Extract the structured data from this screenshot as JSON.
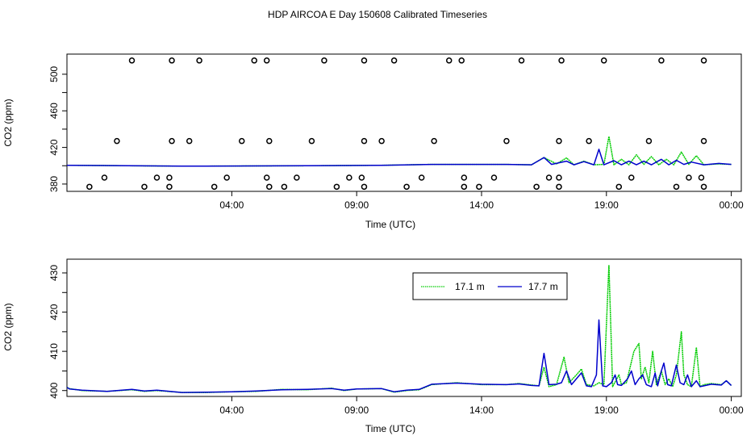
{
  "title": "HDP AIRCOA E  Day 150608  Calibrated Timeseries",
  "colors": {
    "green": "#00cc00",
    "blue": "#0000cc",
    "axis": "#000000"
  },
  "chart_data": [
    {
      "type": "scatter+line",
      "title": "",
      "xlabel": "Time (UTC)",
      "ylabel": "CO2 (ppm)",
      "xlim": [
        -2.6,
        24.4
      ],
      "ylim": [
        372,
        522
      ],
      "xticks": [
        4,
        9,
        14,
        19,
        24
      ],
      "xtick_labels": [
        "04:00",
        "09:00",
        "14:00",
        "19:00",
        "00:00"
      ],
      "yticks": [
        380,
        420,
        460,
        500
      ],
      "yticks_minor": [
        400,
        440,
        480
      ],
      "grid": false,
      "calibration_points": [
        {
          "t": -1.7,
          "v": 377
        },
        {
          "t": -1.1,
          "v": 387
        },
        {
          "t": -0.6,
          "v": 427
        },
        {
          "t": 0.0,
          "v": 515
        },
        {
          "t": 0.5,
          "v": 377
        },
        {
          "t": 1.0,
          "v": 387
        },
        {
          "t": 1.5,
          "v": 377
        },
        {
          "t": 1.5,
          "v": 387
        },
        {
          "t": 1.6,
          "v": 427
        },
        {
          "t": 1.6,
          "v": 515
        },
        {
          "t": 2.3,
          "v": 427
        },
        {
          "t": 2.7,
          "v": 515
        },
        {
          "t": 3.3,
          "v": 377
        },
        {
          "t": 3.8,
          "v": 387
        },
        {
          "t": 4.4,
          "v": 427
        },
        {
          "t": 4.9,
          "v": 515
        },
        {
          "t": 5.4,
          "v": 387
        },
        {
          "t": 5.4,
          "v": 515
        },
        {
          "t": 5.5,
          "v": 377
        },
        {
          "t": 5.5,
          "v": 427
        },
        {
          "t": 6.1,
          "v": 377
        },
        {
          "t": 6.6,
          "v": 387
        },
        {
          "t": 7.2,
          "v": 427
        },
        {
          "t": 7.7,
          "v": 515
        },
        {
          "t": 8.2,
          "v": 377
        },
        {
          "t": 8.7,
          "v": 387
        },
        {
          "t": 9.2,
          "v": 387
        },
        {
          "t": 9.3,
          "v": 377
        },
        {
          "t": 9.3,
          "v": 427
        },
        {
          "t": 9.3,
          "v": 515
        },
        {
          "t": 10.0,
          "v": 427
        },
        {
          "t": 10.5,
          "v": 515
        },
        {
          "t": 11.0,
          "v": 377
        },
        {
          "t": 11.6,
          "v": 387
        },
        {
          "t": 12.1,
          "v": 427
        },
        {
          "t": 12.7,
          "v": 515
        },
        {
          "t": 13.2,
          "v": 515
        },
        {
          "t": 13.3,
          "v": 387
        },
        {
          "t": 13.3,
          "v": 377
        },
        {
          "t": 13.9,
          "v": 377
        },
        {
          "t": 14.5,
          "v": 387
        },
        {
          "t": 15.0,
          "v": 427
        },
        {
          "t": 15.6,
          "v": 515
        },
        {
          "t": 16.2,
          "v": 377
        },
        {
          "t": 16.7,
          "v": 387
        },
        {
          "t": 17.1,
          "v": 387
        },
        {
          "t": 17.1,
          "v": 377
        },
        {
          "t": 17.1,
          "v": 427
        },
        {
          "t": 17.2,
          "v": 515
        },
        {
          "t": 18.3,
          "v": 427
        },
        {
          "t": 18.9,
          "v": 515
        },
        {
          "t": 19.5,
          "v": 377
        },
        {
          "t": 20.0,
          "v": 387
        },
        {
          "t": 20.7,
          "v": 427
        },
        {
          "t": 21.2,
          "v": 515
        },
        {
          "t": 21.8,
          "v": 377
        },
        {
          "t": 22.3,
          "v": 387
        },
        {
          "t": 22.8,
          "v": 387
        },
        {
          "t": 22.9,
          "v": 377
        },
        {
          "t": 22.9,
          "v": 427
        },
        {
          "t": 22.9,
          "v": 515
        }
      ],
      "series": [
        {
          "color": "#00cc00",
          "points": [
            [
              -3.0,
              400.5
            ],
            [
              2.0,
              399.5
            ],
            [
              7.0,
              400.0
            ],
            [
              10.0,
              400.5
            ],
            [
              12.0,
              401.5
            ],
            [
              15.0,
              401.5
            ],
            [
              16.0,
              401.0
            ],
            [
              16.5,
              409.0
            ],
            [
              17.0,
              402.0
            ],
            [
              17.4,
              408.5
            ],
            [
              17.7,
              401.0
            ],
            [
              18.1,
              405.0
            ],
            [
              18.5,
              401.0
            ],
            [
              18.9,
              401.5
            ],
            [
              19.1,
              432.0
            ],
            [
              19.3,
              401.0
            ],
            [
              19.6,
              407.0
            ],
            [
              19.9,
              401.0
            ],
            [
              20.2,
              412.0
            ],
            [
              20.5,
              401.5
            ],
            [
              20.8,
              410.0
            ],
            [
              21.1,
              401.0
            ],
            [
              21.4,
              407.0
            ],
            [
              21.7,
              401.0
            ],
            [
              22.0,
              415.0
            ],
            [
              22.3,
              401.5
            ],
            [
              22.6,
              411.0
            ],
            [
              22.9,
              401.0
            ],
            [
              23.5,
              402.0
            ],
            [
              24.0,
              401.5
            ]
          ]
        },
        {
          "color": "#0000cc",
          "points": [
            [
              -3.0,
              400.5
            ],
            [
              2.0,
              399.5
            ],
            [
              7.0,
              400.0
            ],
            [
              10.0,
              400.5
            ],
            [
              12.0,
              401.5
            ],
            [
              15.0,
              401.5
            ],
            [
              16.0,
              401.0
            ],
            [
              16.5,
              409.0
            ],
            [
              16.8,
              401.5
            ],
            [
              17.4,
              405.0
            ],
            [
              17.7,
              401.0
            ],
            [
              18.1,
              404.5
            ],
            [
              18.5,
              401.0
            ],
            [
              18.7,
              418.0
            ],
            [
              18.9,
              401.0
            ],
            [
              19.3,
              405.5
            ],
            [
              19.6,
              401.0
            ],
            [
              19.9,
              405.0
            ],
            [
              20.2,
              401.0
            ],
            [
              20.5,
              405.0
            ],
            [
              20.8,
              401.0
            ],
            [
              21.2,
              407.0
            ],
            [
              21.5,
              401.0
            ],
            [
              21.8,
              406.0
            ],
            [
              22.1,
              401.5
            ],
            [
              22.4,
              404.0
            ],
            [
              22.9,
              401.0
            ],
            [
              23.5,
              402.5
            ],
            [
              24.0,
              401.5
            ]
          ]
        }
      ]
    },
    {
      "type": "line",
      "title": "",
      "xlabel": "Time (UTC)",
      "ylabel": "CO2 (ppm)",
      "xlim": [
        -2.6,
        24.4
      ],
      "ylim": [
        398.5,
        433.5
      ],
      "xticks": [
        4,
        9,
        14,
        19,
        24
      ],
      "xtick_labels": [
        "04:00",
        "09:00",
        "14:00",
        "19:00",
        "00:00"
      ],
      "yticks": [
        400,
        410,
        420,
        430
      ],
      "yticks_minor": [
        405,
        415,
        425
      ],
      "grid": false,
      "legend_position": "top-right",
      "series": [
        {
          "name": "17.1 m",
          "color": "#00cc00",
          "points": [
            [
              -3.0,
              400.8
            ],
            [
              -2.5,
              400.5
            ],
            [
              -2.0,
              400.0
            ],
            [
              -1.0,
              399.8
            ],
            [
              0.0,
              400.2
            ],
            [
              0.5,
              399.8
            ],
            [
              1.0,
              400.0
            ],
            [
              2.0,
              399.5
            ],
            [
              3.0,
              399.5
            ],
            [
              4.0,
              399.7
            ],
            [
              5.0,
              399.8
            ],
            [
              6.0,
              400.3
            ],
            [
              7.0,
              400.2
            ],
            [
              8.0,
              400.6
            ],
            [
              8.5,
              400.0
            ],
            [
              9.0,
              400.4
            ],
            [
              10.0,
              400.5
            ],
            [
              10.5,
              399.6
            ],
            [
              11.0,
              400.0
            ],
            [
              11.5,
              400.2
            ],
            [
              12.0,
              401.5
            ],
            [
              13.0,
              402.0
            ],
            [
              14.0,
              401.5
            ],
            [
              15.0,
              401.5
            ],
            [
              15.5,
              401.8
            ],
            [
              16.0,
              401.4
            ],
            [
              16.3,
              401.2
            ],
            [
              16.5,
              406.0
            ],
            [
              16.7,
              401.0
            ],
            [
              17.0,
              401.5
            ],
            [
              17.3,
              408.5
            ],
            [
              17.5,
              402.0
            ],
            [
              17.8,
              404.0
            ],
            [
              18.0,
              405.5
            ],
            [
              18.2,
              401.5
            ],
            [
              18.5,
              401.2
            ],
            [
              18.7,
              402.0
            ],
            [
              18.9,
              401.5
            ],
            [
              19.1,
              432.0
            ],
            [
              19.25,
              401.0
            ],
            [
              19.5,
              404.0
            ],
            [
              19.6,
              401.5
            ],
            [
              19.8,
              402.0
            ],
            [
              20.1,
              410.0
            ],
            [
              20.3,
              412.0
            ],
            [
              20.4,
              403.0
            ],
            [
              20.55,
              406.0
            ],
            [
              20.7,
              402.0
            ],
            [
              20.85,
              410.0
            ],
            [
              21.0,
              401.5
            ],
            [
              21.2,
              405.0
            ],
            [
              21.35,
              401.5
            ],
            [
              21.5,
              403.0
            ],
            [
              21.65,
              401.0
            ],
            [
              21.8,
              404.0
            ],
            [
              22.0,
              415.0
            ],
            [
              22.1,
              404.0
            ],
            [
              22.25,
              401.5
            ],
            [
              22.4,
              401.0
            ],
            [
              22.6,
              411.0
            ],
            [
              22.75,
              401.0
            ],
            [
              22.9,
              401.5
            ],
            [
              23.2,
              401.8
            ],
            [
              23.6,
              401.5
            ],
            [
              23.8,
              402.5
            ],
            [
              24.0,
              401.3
            ]
          ]
        },
        {
          "name": "17.7 m",
          "color": "#0000cc",
          "points": [
            [
              -3.0,
              400.8
            ],
            [
              -2.5,
              400.4
            ],
            [
              -2.0,
              400.1
            ],
            [
              -1.0,
              399.8
            ],
            [
              0.0,
              400.3
            ],
            [
              0.5,
              399.9
            ],
            [
              1.0,
              400.1
            ],
            [
              2.0,
              399.5
            ],
            [
              3.0,
              399.6
            ],
            [
              4.0,
              399.7
            ],
            [
              5.0,
              399.9
            ],
            [
              6.0,
              400.2
            ],
            [
              7.0,
              400.3
            ],
            [
              8.0,
              400.5
            ],
            [
              8.5,
              400.1
            ],
            [
              9.0,
              400.4
            ],
            [
              10.0,
              400.5
            ],
            [
              10.5,
              399.7
            ],
            [
              11.0,
              400.1
            ],
            [
              11.5,
              400.3
            ],
            [
              12.0,
              401.6
            ],
            [
              13.0,
              401.9
            ],
            [
              14.0,
              401.6
            ],
            [
              15.0,
              401.5
            ],
            [
              15.5,
              401.7
            ],
            [
              16.0,
              401.3
            ],
            [
              16.3,
              401.2
            ],
            [
              16.5,
              409.5
            ],
            [
              16.7,
              401.5
            ],
            [
              17.0,
              401.6
            ],
            [
              17.2,
              402.0
            ],
            [
              17.4,
              405.0
            ],
            [
              17.6,
              401.5
            ],
            [
              17.8,
              403.0
            ],
            [
              18.0,
              404.5
            ],
            [
              18.2,
              401.2
            ],
            [
              18.4,
              401.0
            ],
            [
              18.6,
              404.0
            ],
            [
              18.7,
              418.0
            ],
            [
              18.85,
              401.2
            ],
            [
              19.0,
              401.0
            ],
            [
              19.2,
              402.0
            ],
            [
              19.35,
              404.0
            ],
            [
              19.45,
              401.5
            ],
            [
              19.6,
              401.3
            ],
            [
              19.85,
              403.0
            ],
            [
              20.0,
              405.0
            ],
            [
              20.15,
              401.5
            ],
            [
              20.3,
              403.0
            ],
            [
              20.45,
              404.0
            ],
            [
              20.6,
              401.5
            ],
            [
              20.8,
              401.0
            ],
            [
              20.95,
              404.5
            ],
            [
              21.05,
              401.2
            ],
            [
              21.2,
              405.0
            ],
            [
              21.3,
              407.0
            ],
            [
              21.45,
              401.5
            ],
            [
              21.6,
              401.2
            ],
            [
              21.8,
              406.5
            ],
            [
              21.95,
              402.0
            ],
            [
              22.1,
              401.5
            ],
            [
              22.25,
              404.0
            ],
            [
              22.4,
              401.0
            ],
            [
              22.6,
              402.5
            ],
            [
              22.75,
              401.0
            ],
            [
              22.9,
              401.2
            ],
            [
              23.2,
              401.6
            ],
            [
              23.6,
              401.4
            ],
            [
              23.8,
              402.5
            ],
            [
              24.0,
              401.3
            ]
          ]
        }
      ]
    }
  ]
}
